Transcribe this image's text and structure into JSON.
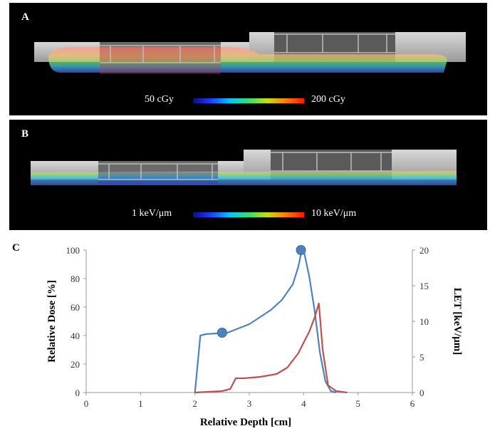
{
  "panel_a": {
    "label": "A",
    "colorbar_min": "50 cGy",
    "colorbar_max": "200 cGy"
  },
  "panel_b": {
    "label": "B",
    "colorbar_min": "1 keV/μm",
    "colorbar_max": "10 keV/μm"
  },
  "panel_c": {
    "label": "C"
  },
  "colors": {
    "dose_series": "#4f81bd",
    "let_series": "#c0504d",
    "axis": "#999999"
  },
  "chart_data": {
    "type": "line",
    "xlabel": "Relative Depth [cm]",
    "ylabel": "Relative Dose [%]",
    "y2label": "LET [keV/μm]",
    "xlim": [
      0,
      6
    ],
    "ylim": [
      0,
      100
    ],
    "y2lim": [
      0,
      20
    ],
    "xticks": [
      0,
      1,
      2,
      3,
      4,
      5,
      6
    ],
    "yticks": [
      0,
      20,
      40,
      60,
      80,
      100
    ],
    "y2ticks": [
      0,
      5,
      10,
      15,
      20
    ],
    "grid": false,
    "series": [
      {
        "axis": "left",
        "x": [
          2.0,
          2.1,
          2.2,
          2.6,
          2.8,
          3.0,
          3.2,
          3.4,
          3.6,
          3.8,
          3.9,
          3.95,
          4.0,
          4.1,
          4.2,
          4.3,
          4.4,
          4.5,
          4.6
        ],
        "y": [
          0,
          40,
          41,
          42,
          45,
          48,
          53,
          58,
          65,
          76,
          88,
          97,
          100,
          82,
          58,
          28,
          8,
          1,
          0
        ],
        "markers": [
          {
            "x": 2.5,
            "y": 42
          },
          {
            "x": 3.95,
            "y": 100
          }
        ]
      },
      {
        "axis": "right",
        "x": [
          2.0,
          2.5,
          2.65,
          2.75,
          2.9,
          3.2,
          3.5,
          3.7,
          3.9,
          4.0,
          4.1,
          4.2,
          4.28,
          4.35,
          4.45,
          4.6,
          4.8
        ],
        "y": [
          0,
          0.2,
          0.5,
          2,
          2,
          2.2,
          2.6,
          3.5,
          5.5,
          7,
          8.5,
          10.5,
          12.5,
          6,
          1,
          0.2,
          0
        ]
      }
    ]
  }
}
